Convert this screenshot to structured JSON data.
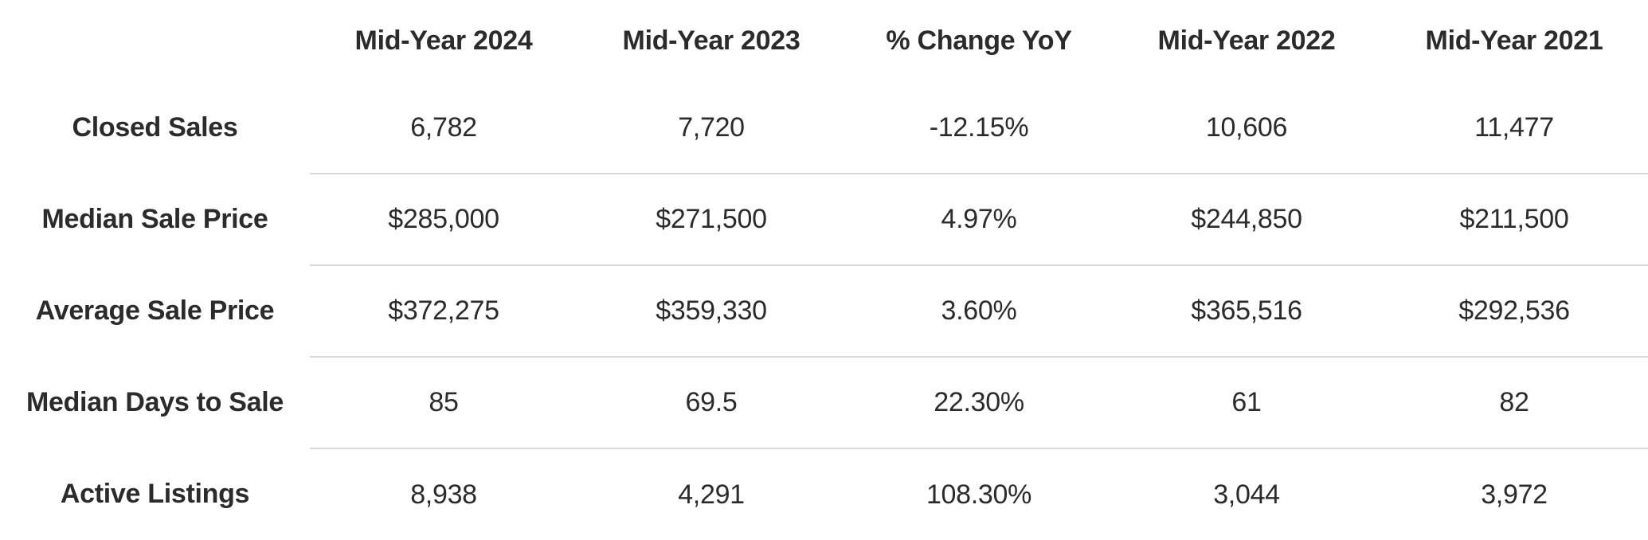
{
  "chart_data": {
    "type": "table",
    "columns": [
      "",
      "Mid-Year 2024",
      "Mid-Year 2023",
      "% Change YoY",
      "Mid-Year 2022",
      "Mid-Year 2021"
    ],
    "rows": [
      {
        "label": "Closed Sales",
        "values": [
          "6,782",
          "7,720",
          "-12.15%",
          "10,606",
          "11,477"
        ]
      },
      {
        "label": "Median Sale Price",
        "values": [
          "$285,000",
          "$271,500",
          "4.97%",
          "$244,850",
          "$211,500"
        ]
      },
      {
        "label": "Average Sale Price",
        "values": [
          "$372,275",
          "$359,330",
          "3.60%",
          "$365,516",
          "$292,536"
        ]
      },
      {
        "label": "Median Days to Sale",
        "values": [
          "85",
          "69.5",
          "22.30%",
          "61",
          "82"
        ]
      },
      {
        "label": "Active Listings",
        "values": [
          "8,938",
          "4,291",
          "108.30%",
          "3,044",
          "3,972"
        ]
      }
    ]
  },
  "colors": {
    "text": "#2b2b2b",
    "divider": "#d9d9d9",
    "background": "#ffffff"
  }
}
